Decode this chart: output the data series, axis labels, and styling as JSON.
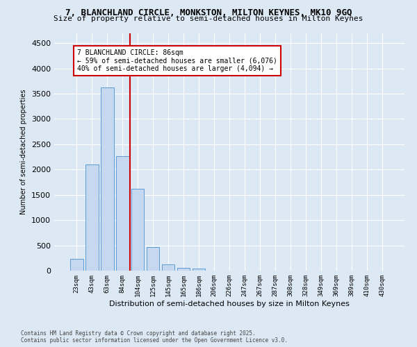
{
  "title_line1": "7, BLANCHLAND CIRCLE, MONKSTON, MILTON KEYNES, MK10 9GQ",
  "title_line2": "Size of property relative to semi-detached houses in Milton Keynes",
  "xlabel": "Distribution of semi-detached houses by size in Milton Keynes",
  "ylabel": "Number of semi-detached properties",
  "categories": [
    "23sqm",
    "43sqm",
    "63sqm",
    "84sqm",
    "104sqm",
    "125sqm",
    "145sqm",
    "165sqm",
    "186sqm",
    "206sqm",
    "226sqm",
    "247sqm",
    "267sqm",
    "287sqm",
    "308sqm",
    "328sqm",
    "349sqm",
    "369sqm",
    "389sqm",
    "410sqm",
    "430sqm"
  ],
  "values": [
    230,
    2100,
    3620,
    2270,
    1620,
    460,
    130,
    60,
    40,
    0,
    0,
    0,
    0,
    0,
    0,
    0,
    0,
    0,
    0,
    0,
    0
  ],
  "bar_color": "#c5d8f0",
  "bar_edge_color": "#5b9bd5",
  "vline_x_index": 3,
  "vline_color": "#cc0000",
  "annotation_title": "7 BLANCHLAND CIRCLE: 86sqm",
  "annotation_line1": "← 59% of semi-detached houses are smaller (6,076)",
  "annotation_line2": "40% of semi-detached houses are larger (4,094) →",
  "annotation_box_color": "#ffffff",
  "annotation_box_edge": "#cc0000",
  "ylim": [
    0,
    4700
  ],
  "yticks": [
    0,
    500,
    1000,
    1500,
    2000,
    2500,
    3000,
    3500,
    4000,
    4500
  ],
  "footnote1": "Contains HM Land Registry data © Crown copyright and database right 2025.",
  "footnote2": "Contains public sector information licensed under the Open Government Licence v3.0.",
  "bg_color": "#dce9f5",
  "plot_bg_color": "#dce9f5",
  "title_fontsize": 9,
  "subtitle_fontsize": 8
}
